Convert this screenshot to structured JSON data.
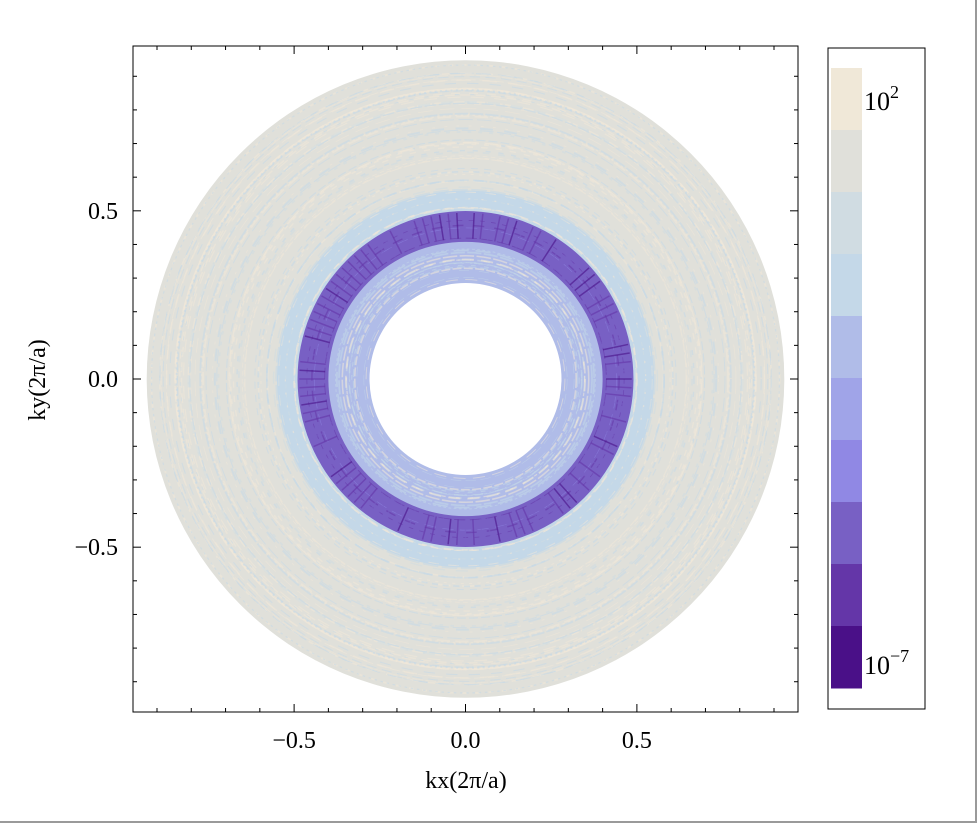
{
  "chart_data": {
    "type": "heatmap",
    "xlabel": "kx(2π/a)",
    "ylabel": "ky(2π/a)",
    "xlim": [
      -0.97,
      0.97
    ],
    "ylim": [
      -0.99,
      0.99
    ],
    "x_ticks": [
      -0.5,
      0.0,
      0.5
    ],
    "y_ticks": [
      -0.5,
      0.0,
      0.5
    ],
    "x_tick_labels": [
      "−0.5",
      "0.0",
      "0.5"
    ],
    "y_tick_labels": [
      "−0.5",
      "0.0",
      "0.5"
    ],
    "minor_tick_step": 0.1,
    "grid": false,
    "colorbar": {
      "scale": "log",
      "range": [
        1e-07,
        100.0
      ],
      "tick_labels": [
        {
          "base": "10",
          "exp": "2"
        },
        {
          "base": "10",
          "exp": "−7"
        }
      ],
      "colors_top_to_bottom": [
        "#f0e8d8",
        "#e0e0da",
        "#d0dce2",
        "#c4d8e8",
        "#b0bce8",
        "#a0a4e8",
        "#9088e4",
        "#7860c4",
        "#6436a8",
        "#4a1088"
      ],
      "placement": "right"
    },
    "radial_profile": [
      {
        "r": [
          0.0,
          0.28
        ],
        "value": null
      },
      {
        "r": [
          0.28,
          0.4
        ],
        "log10_value": -2
      },
      {
        "r": [
          0.4,
          0.49
        ],
        "log10_value": -5
      },
      {
        "r": [
          0.49,
          0.55
        ],
        "log10_value": -1
      },
      {
        "r": [
          0.55,
          0.93
        ],
        "log10_value": 0.5
      }
    ]
  }
}
